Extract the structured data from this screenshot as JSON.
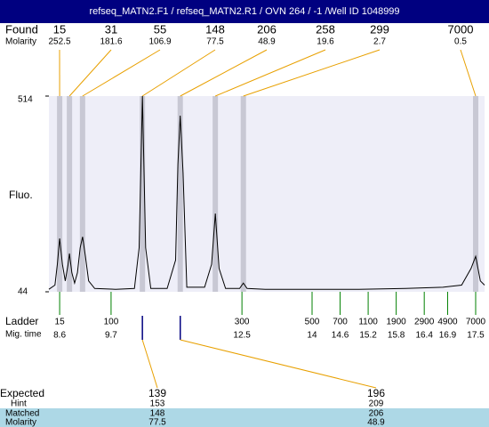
{
  "title": "refseq_MATN2.F1 / refseq_MATN2.R1 / OVN 264 / -1 /Well ID 1048999",
  "found": {
    "label": "Found",
    "molarity_label": "Molarity",
    "peaks": [
      {
        "size": 15,
        "molarity": 252.5,
        "time": 8.6
      },
      {
        "size": 31,
        "molarity": 181.6,
        "time": 8.81
      },
      {
        "size": 55,
        "molarity": 106.9,
        "time": 9.09
      },
      {
        "size": 148,
        "molarity": 77.5,
        "time": 10.37
      },
      {
        "size": 206,
        "molarity": 48.9,
        "time": 11.18
      },
      {
        "size": 258,
        "molarity": 19.6,
        "time": 11.93
      },
      {
        "size": 299,
        "molarity": 2.7,
        "time": 12.53
      },
      {
        "size": 7000,
        "molarity": 0.5,
        "time": 17.5
      }
    ]
  },
  "plot": {
    "y_label": "Fluo.",
    "ylim": [
      44,
      514
    ],
    "yticks": [
      44,
      514
    ],
    "xlim": [
      8.37,
      17.69
    ],
    "trace": {
      "x": [
        8.37,
        8.5,
        8.55,
        8.6,
        8.66,
        8.72,
        8.78,
        8.81,
        8.86,
        8.92,
        8.98,
        9.04,
        9.09,
        9.15,
        9.22,
        9.35,
        9.8,
        10.2,
        10.3,
        10.37,
        10.44,
        10.55,
        10.9,
        11.08,
        11.13,
        11.18,
        11.24,
        11.32,
        11.7,
        11.85,
        11.93,
        12.01,
        12.15,
        12.45,
        12.53,
        12.61,
        13,
        14,
        15,
        16,
        16.8,
        17.2,
        17.4,
        17.5,
        17.6,
        17.69
      ],
      "y": [
        50,
        60,
        110,
        172,
        110,
        70,
        110,
        136,
        90,
        65,
        90,
        150,
        176,
        130,
        70,
        52,
        50,
        52,
        150,
        514,
        150,
        52,
        52,
        120,
        350,
        467,
        330,
        55,
        55,
        110,
        232,
        100,
        52,
        52,
        65,
        52,
        50,
        50,
        50,
        52,
        55,
        60,
        100,
        129,
        70,
        60
      ]
    }
  },
  "ladder": {
    "label": "Ladder",
    "time_label": "Mig. time",
    "sizes": [
      15,
      100,
      300,
      500,
      700,
      1100,
      1900,
      2900,
      4900,
      7000
    ],
    "times": [
      8.6,
      9.7,
      12.5,
      14,
      14.6,
      15.2,
      15.8,
      16.4,
      16.9,
      17.5
    ]
  },
  "expected": {
    "labels": {
      "expected": "Expected",
      "hint": "Hint",
      "matched": "Matched",
      "molarity": "Molarity"
    },
    "peaks": [
      {
        "expected": 139,
        "hint": 153,
        "matched": 148,
        "molarity": 77.5,
        "time": 10.37
      },
      {
        "expected": 196,
        "hint": 209,
        "matched": 206,
        "molarity": 48.9,
        "time": 11.18
      }
    ]
  }
}
